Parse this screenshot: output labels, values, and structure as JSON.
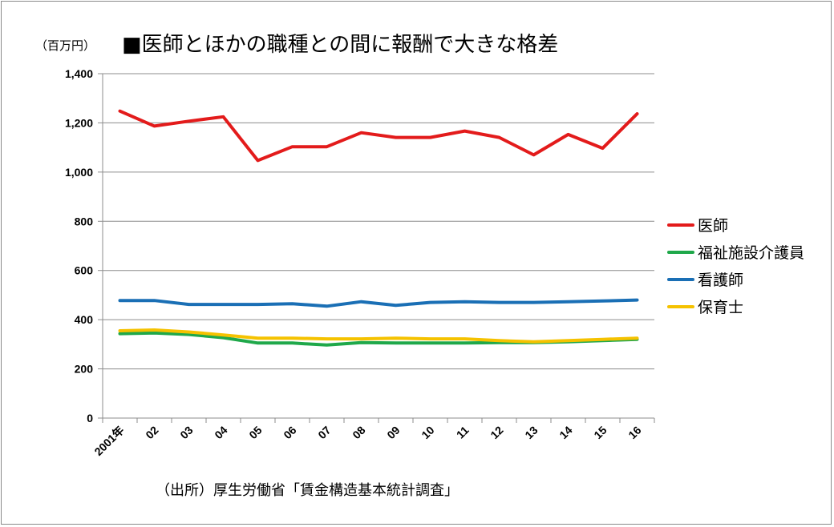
{
  "chart_data": {
    "type": "line",
    "unit_label": "（百万円）",
    "title": "■医師とほかの職種との間に報酬で大きな格差",
    "source": "（出所）厚生労働省「賃金構造基本統計調査」",
    "categories": [
      "2001年",
      "02",
      "03",
      "04",
      "05",
      "06",
      "07",
      "08",
      "09",
      "10",
      "11",
      "12",
      "13",
      "14",
      "15",
      "16"
    ],
    "ylim": [
      0,
      1400
    ],
    "yticks": [
      0,
      200,
      400,
      600,
      800,
      1000,
      1200,
      1400
    ],
    "ytick_labels": [
      "0",
      "200",
      "400",
      "600",
      "800",
      "1,000",
      "1,200",
      "1,400"
    ],
    "grid": true,
    "legend_position": "right",
    "series": [
      {
        "name": "医師",
        "color": "#e31b1b",
        "values": [
          1248,
          1187,
          1207,
          1225,
          1047,
          1103,
          1103,
          1160,
          1141,
          1141,
          1167,
          1141,
          1070,
          1153,
          1097,
          1237
        ]
      },
      {
        "name": "福祉施設介護員",
        "color": "#1fa84a",
        "values": [
          343,
          346,
          340,
          327,
          305,
          305,
          297,
          307,
          305,
          305,
          305,
          307,
          307,
          310,
          315,
          320
        ]
      },
      {
        "name": "看護師",
        "color": "#1a6fb5",
        "values": [
          478,
          478,
          462,
          462,
          462,
          465,
          455,
          473,
          458,
          470,
          473,
          470,
          470,
          473,
          476,
          480
        ]
      },
      {
        "name": "保育士",
        "color": "#f5c200",
        "values": [
          355,
          358,
          350,
          338,
          325,
          325,
          322,
          322,
          325,
          322,
          322,
          315,
          310,
          315,
          320,
          325
        ]
      }
    ]
  }
}
